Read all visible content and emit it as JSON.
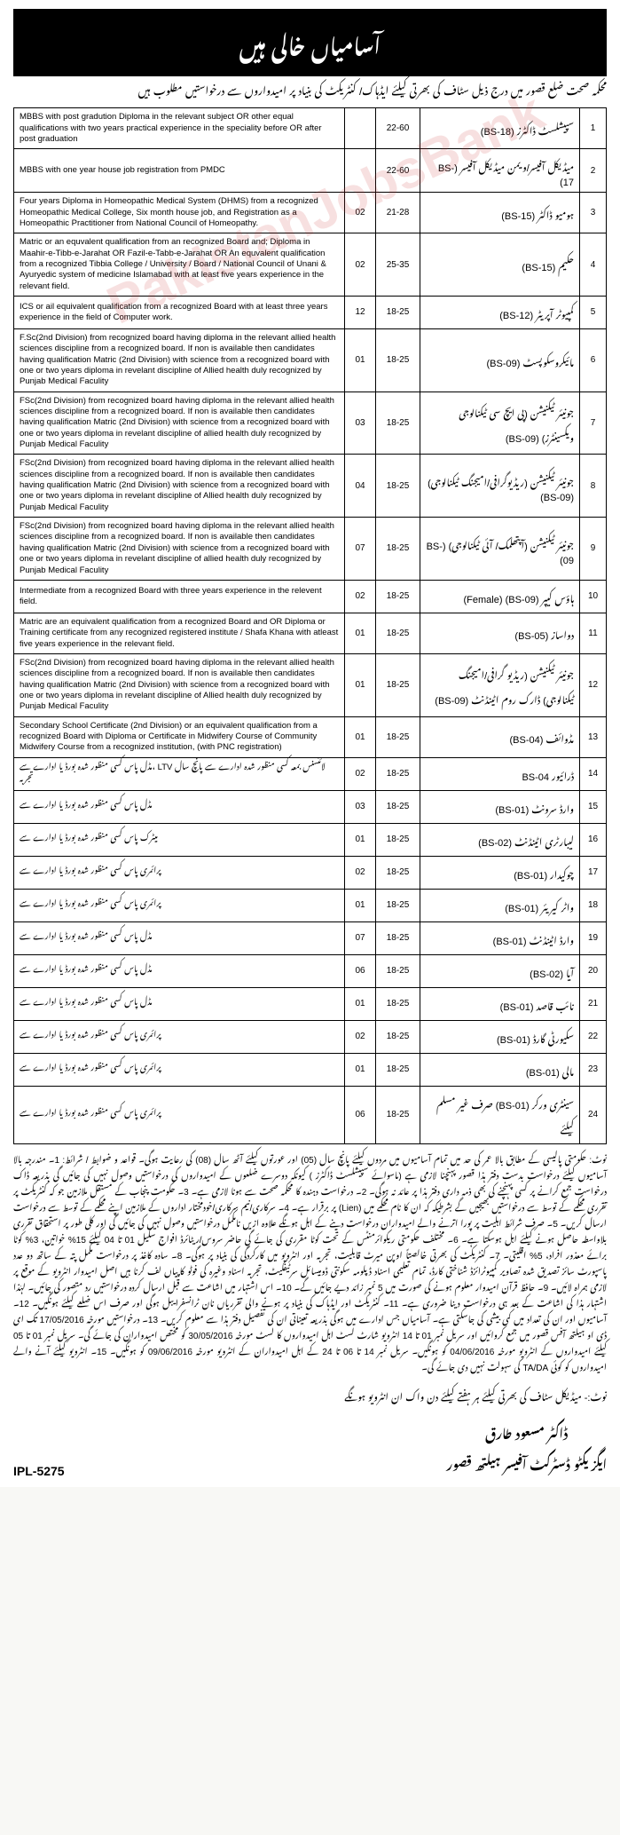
{
  "header": "آسامیاں خالی ہیں",
  "intro": "محکمہ صحت ضلع قصور میں درج ذیل سٹاف کی بھرتی کیلئے ایڈہاک/ کنٹریکٹ کی بنیاد پر امیدواروں سے درخواستیں مطلوب ہیں",
  "watermark": "PakistanJobsBank",
  "rows": [
    {
      "sno": "1",
      "pos": "سپیشلسٹ ڈاکٹرز (BS-18)",
      "age": "22-60",
      "vac": "",
      "qual": "MBBS with post gradution Diploma in the relevant subject OR other equal qualifications with two years practical experience in the speciality before OR after post graduation"
    },
    {
      "sno": "2",
      "pos": "میڈیکل آفیسر/ویمن میڈیکل آفیسر (BS-17)",
      "age": "22-60",
      "vac": "",
      "qual": "MBBS with one year house job registration from PMDC"
    },
    {
      "sno": "3",
      "pos": "ہومیو ڈاکٹر (BS-15)",
      "age": "21-28",
      "vac": "02",
      "qual": "Four years Diploma in Homeopathic Medical System (DHMS) from a recognized Homeopathic Medical College, Six month house job, and Registration as a Homeopathic Practitioner from National Council of Homeopathy."
    },
    {
      "sno": "4",
      "pos": "حکیم (BS-15)",
      "age": "25-35",
      "vac": "02",
      "qual": "Matric or an equvalent qualification from an recognized Board and; Diploma in Maahir-e-Tibb-e-Jarahat OR Fazil-e-Tabb-e-Jarahat OR An equvalent qualification from a recognized Tibbia College / University / Board / National Council of Unani & Ayuryedic system of medicine Islamabad with at least five years experience in the relevant field."
    },
    {
      "sno": "5",
      "pos": "کمپیوٹر آپریٹر (BS-12)",
      "age": "18-25",
      "vac": "12",
      "qual": "ICS or ail equivalent qualification from a recognized Board with at least three years experience in the field of Computer work."
    },
    {
      "sno": "6",
      "pos": "مائیکروسکوپسٹ (BS-09)",
      "age": "18-25",
      "vac": "01",
      "qual": "F.Sc(2nd Division) from recognized board having diploma in the relevant allied health sciences discipline from a recognized board. If non is available then candidates having qualification Matric (2nd Division) with science from a recognized board with one or two years diploma in revelant discipline of Allied health duly recognized by Punjab Medical Faculity"
    },
    {
      "sno": "7",
      "pos": "جونیئر ٹیکنیشن (پی ایچ سی ٹیکنالوجی ویکسینٹرز) (BS-09)",
      "age": "18-25",
      "vac": "03",
      "qual": "FSc(2nd Division) from recognized board having diploma in the relevant allied health sciences discipline from a recognized board. If non is available then candidates having qualification Matric (2nd Division) with science from a recognized board with one or two years diploma in revelant discipline of allied health duly recognized by Punjab Medical Faculity"
    },
    {
      "sno": "8",
      "pos": "جونیئر ٹیکنیشن (ریڈیوگرافی/امیجنگ ٹیکنالوجی) (BS-09)",
      "age": "18-25",
      "vac": "04",
      "qual": "FSc(2nd Division) from recognized board having diploma in the relevant allied health sciences discipline from a recognized board. If non is available then candidates having qualification Matric (2nd Division) with science from a recognized board with one or two years diploma in revelant discipline of Allied health duly recognized by Punjab Medical Faculity"
    },
    {
      "sno": "9",
      "pos": "جونیئر ٹیکنیشن (آپتھلمک/ آئی ٹیکنالوجی) (BS-09)",
      "age": "18-25",
      "vac": "07",
      "qual": "FSc(2nd Division) from recognized board having diploma in the relevant allied health sciences discipline from a recognized board. If non is available then candidates having qualification Matric (2nd Division) with science from a recognized board with one or two years diploma in revelant discipline of allied health duly recognized by Punjab Medical Faculity"
    },
    {
      "sno": "10",
      "pos": "ہاؤس کیپر (BS-09) (Female)",
      "age": "18-25",
      "vac": "02",
      "qual": "Intermediate from a recognized Board with three years experience in the relevent field."
    },
    {
      "sno": "11",
      "pos": "دواساز (BS-05)",
      "age": "18-25",
      "vac": "01",
      "qual": "Matric are an equivalent qualification from a recognized Board and OR Diploma or Training certificate from any recognized registered institute / Shafa Khana with atleast five years experience in the relevant field."
    },
    {
      "sno": "12",
      "pos": "جونیئر ٹیکنیشن (ریڈیو گرافی/امیجنگ ٹیکنالوجی) ڈارک روم اٹینڈنٹ (BS-09)",
      "age": "18-25",
      "vac": "01",
      "qual": "FSc(2nd Division) from recognized board having diploma in the relevant allied health sciences discipline from a recognized board. If non is available then candidates having qualification Matric (2nd Division) with science from a recognized board with one or two years diploma in revelant discipline of Allied health duly recognized by Punjab Medical Faculity"
    },
    {
      "sno": "13",
      "pos": "مڈوائف (BS-04)",
      "age": "18-25",
      "vac": "01",
      "qual": "Secondary School Certificate (2nd Division) or an equivalent qualification from a recognized Board with Diploma or Certificate in Midwifery Course of Community Midwifery Course from a recognized institution, (with PNC registration)"
    },
    {
      "sno": "14",
      "pos": "ڈرائیور BS-04",
      "age": "18-25",
      "vac": "02",
      "qual": "مڈل پاس کسی منظور شدہ بورڈ یا ادارے سے، LTV لائنسنس بمعہ کسی منظور شدہ ادارے سے پانچ سال تجربہ"
    },
    {
      "sno": "15",
      "pos": "وارڈ سرونٹ (BS-01)",
      "age": "18-25",
      "vac": "03",
      "qual": "مڈل پاس کسی منظور شدہ بورڈ یا ادارے سے"
    },
    {
      "sno": "16",
      "pos": "لیبارٹری اٹینڈنٹ (BS-02)",
      "age": "18-25",
      "vac": "01",
      "qual": "میٹرک پاس کسی منظور شدہ بورڈ یا ادارے سے"
    },
    {
      "sno": "17",
      "pos": "چوکیدار (BS-01)",
      "age": "18-25",
      "vac": "02",
      "qual": "پرائمری پاس کسی منظور شدہ بورڈ یا ادارے سے"
    },
    {
      "sno": "18",
      "pos": "واٹر کیریئر (BS-01)",
      "age": "18-25",
      "vac": "01",
      "qual": "پرائمری پاس کسی منظور شدہ بورڈ یا ادارے سے"
    },
    {
      "sno": "19",
      "pos": "وارڈ اٹینڈنٹ (BS-01)",
      "age": "18-25",
      "vac": "07",
      "qual": "مڈل پاس کسی منظور شدہ بورڈ یا ادارے سے"
    },
    {
      "sno": "20",
      "pos": "آیا (BS-02)",
      "age": "18-25",
      "vac": "06",
      "qual": "مڈل پاس کسی منظور شدہ بورڈ یا ادارے سے"
    },
    {
      "sno": "21",
      "pos": "نائب قاصد (BS-01)",
      "age": "18-25",
      "vac": "01",
      "qual": "مڈل پاس کسی منظور شدہ بورڈ یا ادارے سے"
    },
    {
      "sno": "22",
      "pos": "سکیورٹی گارڈ (BS-01)",
      "age": "18-25",
      "vac": "02",
      "qual": "پرائمری پاس کسی منظور شدہ بورڈ یا ادارے سے"
    },
    {
      "sno": "23",
      "pos": "مالی (BS-01)",
      "age": "18-25",
      "vac": "01",
      "qual": "پرائمری پاس کسی منظور شدہ بورڈ یا ادارے سے"
    },
    {
      "sno": "24",
      "pos": "سینٹری ورکر (BS-01) صرف غیر مسلم کیلئے",
      "age": "18-25",
      "vac": "06",
      "qual": "پرائمری پاس کسی منظور شدہ بورڈ یا ادارے سے"
    }
  ],
  "notes": "نوٹ: حکومتی پالیسی کے مطابق بالا عمر کی حد میں تمام آسامیوں میں مردوں کیلئے پانچ سال (05) اور عورتوں کیلئے آٹھ سال (08) کی رعایت ہوگی۔ قواعد و ضوابط / شرائط: 1۔ مندرجہ بالا آسامیوں کیلئے درخواست بدست دفتر ہذا قصور پہنچنا لازمی ہے (ماسوائے سپیشلسٹ ڈاکٹرز ) کیونکہ دوسرے ضلعوں کے امیدواروں کی درخواستیں وصول نہیں کی جائیں گی بذریعہ ڈاک درخواست جمع کرانے پر کسی پہنچنے کی بھی ذمہ داری دفتر ہذا پر عائد نہ ہوگی۔ 2۔ درخواست دہندہ کا محکمہ صحت سے ہونا لازمی ہے۔ 3۔ حکومت پنجاب کے مستقل ملازمین جو کہ کنٹریکٹ پر تقرری محکمے کے توسط سے درخواستیں بھیجیں گے بشرطیکہ کہ ان کا نام محکمے میں (Lien) پر برقرار ہے۔ 4۔ سرکاری/نیم سرکاری/خودمختار اداروں کے ملازمین اپنے محکمے کے توسط سے درخواست ارسال کریں۔ 5۔ صرف شرائط اہلیت پر پورا اترنے والے امیدواران درخواست دینے کے اہل ہونگے علاوہ ازیں نامکمل درخواستیں وصول نہیں کی جائیں گی اور کلی طور پر استحقاق تقرری بلاواسطہ حاصل ہونے کیلئے اہل ہوسکتا ہے۔ 6۔ مختلف حکومتی ریکوائرمنٹس کے تحت کوٹا مقرری کی جائے گی حاضر سروس/ریٹائرڈ افواج سکیل 01 تا 04 کیلئے 15% خواتین، 3% کوٹا برائے معذور افراد، 5% اقلیتی۔ 7۔ کنٹریکٹ کی بھرتی خالصتاً اوپن میرٹ قابلیت، تجربہ اور انٹرویو میں کارکردگی کی بنیاد پر ہوگی۔ 8۔ سادہ کاغذ پر درخواست مکمل پتہ کے ساتھ دو عدد پاسپورٹ سائز تصدیق شدہ تصاویر کمپیوٹرائزڈ شناختی کارڈ، تمام تعلیمی اسناد ڈپلومہ سکونتی ڈومیسائل سرٹیفکیٹ، تجربہ اسناد وغیرہ کی فوٹو کاپیاں لف کرنا ہیں اصل امیدوار انٹرویو کے موقع پر لازمی ہمراہ لائیں۔ 9۔ حافظ قرآن امیدوار معلوم ہونے کی صورت میں 5 نمبر زائد دیے جائیں گے۔ 10۔ اس اشتہار میں اشاعت سے قبل ارسال کردہ درخواستیں رد متصور کی جائیں۔ لہٰذا اشتہار ہذا کی اشاعت کے بعد ہی درخواست دینا ضروری ہے۔ 11۔ کنٹریکٹ اور ایڈہاک کی بنیاد پر ہونے والی تقرریاں نان ٹرانسفرایبل ہوگی اور صرف اس ضلعے کیلئے ہونگیں۔ 12۔ آسامیوں اور ان کی تعداد میں کمی بیشی کی جاسکتی ہے۔ آسامیاں جس ادارے میں ہوگی بذریعہ تعیناتی ان کی تفصیل دفتر ہذا سے معلوم کریں۔ 13۔ درخواستیں مورخہ 17/05/2016 تک ای ڈی او ہیلتھ آفس قصور میں جمع کروائیں اور سریل نمبر 01 تا 14 انٹرویو شارٹ لسٹ اہل امیدواروں کا لسٹ مورخہ 30/05/2016 کو مختص امیدواران کی جائے گی۔ سریل نمبر 01 تا 05 کیلئے امیدواروں کے انٹرویو مورخہ 04/06/2016 کو ہونگیں۔ سریل نمبر 14 تا 06 تا 24 کے اہل امیدواران کے انٹرویو مورخہ 09/06/2016 کو ہونگیں۔ 15۔ انٹرویو کیلئے آنے والے امیدواروں کو کوئی TA/DA کی سہولت نہیں دی جائے گی۔",
  "footer_note": "نوٹ:- میڈیکل سٹاف کی بھرتی کیلئے ہر ہفتے کیلئے دن واک ان انٹرویو ہونگے",
  "ipl": "IPL-5275",
  "sig_name": "ڈاکٹر مسعود طارق",
  "sig_title": "ایگزیکٹو ڈسٹرکٹ آفیسر ہیلتھ قصور"
}
